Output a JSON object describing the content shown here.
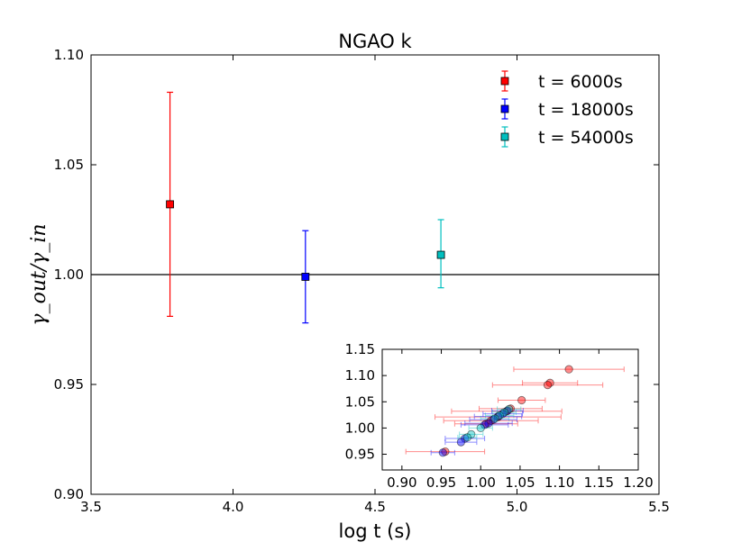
{
  "chart_data": [
    {
      "type": "scatter",
      "title": "NGAO k",
      "xlabel": "log t (s)",
      "ylabel": "γ_out/γ_in",
      "xlim": [
        3.5,
        5.5
      ],
      "ylim": [
        0.9,
        1.1
      ],
      "xticks": [
        "3.5",
        "4.0",
        "4.5",
        "5.0",
        "5.5"
      ],
      "yticks": [
        "0.90",
        "0.95",
        "1.00",
        "1.05",
        "1.10"
      ],
      "reference_line": 1.0,
      "legend_position": "top-right",
      "series": [
        {
          "name": "t = 6000s",
          "color": "#ff0000",
          "x": 3.778,
          "y": 1.032,
          "yerr_low": 0.981,
          "yerr_high": 1.083
        },
        {
          "name": "t = 18000s",
          "color": "#0000ff",
          "x": 4.255,
          "y": 0.999,
          "yerr_low": 0.978,
          "yerr_high": 1.02
        },
        {
          "name": "t = 54000s",
          "color": "#00bfbf",
          "x": 4.732,
          "y": 1.009,
          "yerr_low": 0.994,
          "yerr_high": 1.025
        }
      ]
    },
    {
      "type": "scatter",
      "inset": true,
      "xlim": [
        0.875,
        1.2
      ],
      "ylim": [
        0.92,
        1.15
      ],
      "xticks": [
        "0.90",
        "0.95",
        "1.00",
        "1.05",
        "1.10",
        "1.15",
        "1.20"
      ],
      "yticks": [
        "0.95",
        "1.00",
        "1.05",
        "1.10",
        "1.15"
      ],
      "series": [
        {
          "color": "#ff0000",
          "points": [
            {
              "x": 1.112,
              "y": 1.112,
              "xerr": 0.07
            },
            {
              "x": 1.088,
              "y": 1.086,
              "xerr": 0.035
            },
            {
              "x": 1.085,
              "y": 1.082,
              "xerr": 0.07
            },
            {
              "x": 1.052,
              "y": 1.053,
              "xerr": 0.03
            },
            {
              "x": 1.038,
              "y": 1.037,
              "xerr": 0.04
            },
            {
              "x": 1.033,
              "y": 1.032,
              "xerr": 0.07
            },
            {
              "x": 1.022,
              "y": 1.021,
              "xerr": 0.08
            },
            {
              "x": 1.013,
              "y": 1.014,
              "xerr": 0.06
            },
            {
              "x": 1.007,
              "y": 1.008,
              "xerr": 0.04
            },
            {
              "x": 0.955,
              "y": 0.955,
              "xerr": 0.05
            }
          ]
        },
        {
          "color": "#0000ff",
          "points": [
            {
              "x": 1.034,
              "y": 1.033,
              "xerr": 0.02
            },
            {
              "x": 1.028,
              "y": 1.027,
              "xerr": 0.025
            },
            {
              "x": 1.022,
              "y": 1.022,
              "xerr": 0.03
            },
            {
              "x": 1.016,
              "y": 1.016,
              "xerr": 0.03
            },
            {
              "x": 1.01,
              "y": 1.009,
              "xerr": 0.03
            },
            {
              "x": 1.005,
              "y": 1.006,
              "xerr": 0.03
            },
            {
              "x": 0.98,
              "y": 0.98,
              "xerr": 0.025
            },
            {
              "x": 0.975,
              "y": 0.973,
              "xerr": 0.02
            },
            {
              "x": 0.952,
              "y": 0.953,
              "xerr": 0.015
            }
          ]
        },
        {
          "color": "#00bfbf",
          "points": [
            {
              "x": 1.036,
              "y": 1.036,
              "xerr": 0.015
            },
            {
              "x": 1.03,
              "y": 1.03,
              "xerr": 0.015
            },
            {
              "x": 1.024,
              "y": 1.024,
              "xerr": 0.018
            },
            {
              "x": 1.018,
              "y": 1.018,
              "xerr": 0.018
            },
            {
              "x": 1.0,
              "y": 1.0,
              "xerr": 0.015
            },
            {
              "x": 0.988,
              "y": 0.988,
              "xerr": 0.015
            },
            {
              "x": 0.983,
              "y": 0.982,
              "xerr": 0.012
            }
          ]
        }
      ]
    }
  ]
}
